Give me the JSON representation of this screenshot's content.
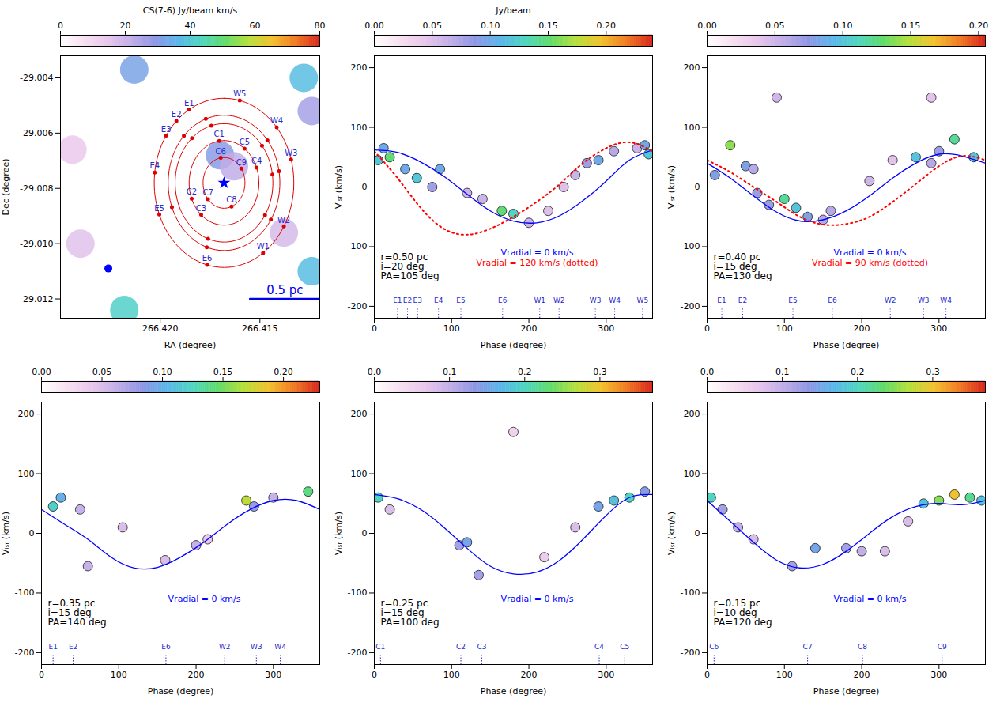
{
  "chart_data": [
    {
      "type": "map",
      "colorbar": {
        "label": "CS(7-6) Jy/beam km/s",
        "range": [
          0,
          80
        ],
        "ticks": [
          0,
          20,
          40,
          60,
          80
        ]
      },
      "xlabel": "RA (degree)",
      "ylabel": "Dec (degree)",
      "xlim": [
        266.425,
        266.412
      ],
      "xticks": [
        {
          "value": 266.42,
          "label": "266.420"
        },
        266.415
      ],
      "ylim": [
        -29.0127,
        -29.0032
      ],
      "yticks": [
        -29.004,
        -29.006,
        -29.008,
        {
          "value": -29.01,
          "label": "-29.010"
        },
        -29.012
      ],
      "emission": {
        "ra": [
          266.4213,
          266.4128,
          266.4124,
          266.4244,
          266.4218,
          266.4124,
          266.417,
          266.4163,
          266.4138,
          266.424
        ],
        "dec": [
          -29.0037,
          -29.004,
          -29.0052,
          -29.0066,
          -29.0124,
          -29.011,
          -29.0068,
          -29.0072,
          -29.0096,
          -29.01
        ],
        "values": [
          32,
          38,
          26,
          14,
          42,
          38,
          30,
          22,
          18,
          16
        ]
      },
      "center": {
        "ra": 266.4168,
        "dec": -29.0078,
        "marker": "star",
        "color": "#0000ff"
      },
      "symbols": [
        {
          "ra": 266.4168,
          "dec": -29.0078,
          "marker": "star",
          "color": "#0000ff"
        },
        {
          "ra": 266.4226,
          "dec": -29.0109,
          "marker": "circle",
          "color": "#0000ff"
        }
      ],
      "scale_bar": {
        "label": "0.5 pc",
        "length_pc": 0.5,
        "ra": [
          266.4155,
          266.412
        ],
        "dec": -29.012
      }
    },
    {
      "type": "pv",
      "colorbar": {
        "label": "Jy/beam",
        "range": [
          0,
          0.24
        ],
        "ticks": [
          {
            "value": 0,
            "label": "0.00"
          },
          0.05,
          {
            "value": 0.1,
            "label": "0.10"
          },
          0.15,
          {
            "value": 0.2,
            "label": "0.20"
          }
        ]
      },
      "xlabel": "Phase (degree)",
      "ylabel": "Vₗₛᵣ (km/s)",
      "xlim": [
        0,
        360
      ],
      "xticks": [
        0,
        100,
        200,
        300
      ],
      "ylim": [
        -220,
        220
      ],
      "yticks": [
        -200,
        -100,
        0,
        100,
        200
      ],
      "annotations": [
        "r=0.50 pc",
        "i=20 deg",
        "PA=105 deg"
      ],
      "r_pc": 0.5,
      "emission": {
        "phase": [
          5,
          12,
          20,
          40,
          55,
          75,
          85,
          120,
          140,
          165,
          180,
          200,
          225,
          245,
          260,
          275,
          290,
          310,
          340,
          350,
          355
        ],
        "velocity": [
          45,
          65,
          50,
          30,
          15,
          0,
          30,
          -10,
          -20,
          -40,
          -45,
          -60,
          -40,
          0,
          20,
          40,
          45,
          60,
          65,
          70,
          55
        ],
        "values": [
          0.12,
          0.1,
          0.15,
          0.1,
          0.12,
          0.08,
          0.1,
          0.06,
          0.06,
          0.15,
          0.13,
          0.06,
          0.05,
          0.05,
          0.06,
          0.08,
          0.1,
          0.07,
          0.06,
          0.1,
          0.12
        ]
      },
      "series": [
        {
          "name": "Vradial = 0 km/s",
          "color": "#0000ff",
          "line_style": "solid",
          "x": [
            0,
            30,
            60,
            90,
            120,
            150,
            180,
            210,
            240,
            270,
            300,
            330,
            360
          ],
          "values": [
            62,
            58,
            42,
            18,
            -12,
            -40,
            -57,
            -60,
            -48,
            -23,
            10,
            45,
            62
          ]
        },
        {
          "name": "Vradial = 120 km/s (dotted)",
          "color": "#ff0000",
          "line_style": "dotted",
          "x": [
            0,
            30,
            60,
            90,
            120,
            150,
            180,
            210,
            240,
            270,
            300,
            330,
            360
          ],
          "values": [
            60,
            15,
            -35,
            -70,
            -80,
            -70,
            -50,
            -25,
            5,
            40,
            65,
            75,
            60
          ]
        }
      ],
      "markers": {
        "labels": [
          "E1",
          "E2",
          "E3",
          "E4",
          "E5",
          "E6",
          "W1",
          "W2",
          "W3",
          "W4",
          "W5"
        ],
        "phase": [
          30,
          43,
          56,
          83,
          112,
          166,
          214,
          239,
          286,
          311,
          347
        ]
      }
    },
    {
      "type": "pv",
      "colorbar": {
        "range": [
          0,
          0.205
        ],
        "ticks": [
          {
            "value": 0,
            "label": "0.00"
          },
          0.05,
          {
            "value": 0.1,
            "label": "0.10"
          },
          0.15,
          {
            "value": 0.2,
            "label": "0.20"
          }
        ]
      },
      "xlabel": "Phase (degree)",
      "ylabel": "Vₗₛᵣ (km/s)",
      "xlim": [
        0,
        360
      ],
      "xticks": [
        0,
        100,
        200,
        300
      ],
      "ylim": [
        -220,
        220
      ],
      "yticks": [
        -200,
        -100,
        0,
        100,
        200
      ],
      "annotations": [
        "r=0.40 pc",
        "i=15 deg",
        "PA=130 deg"
      ],
      "r_pc": 0.4,
      "emission": {
        "phase": [
          10,
          30,
          50,
          60,
          65,
          80,
          100,
          115,
          130,
          150,
          160,
          210,
          240,
          270,
          290,
          300,
          320,
          345,
          90,
          290
        ],
        "velocity": [
          20,
          70,
          35,
          30,
          -10,
          -30,
          -20,
          -35,
          -50,
          -55,
          -40,
          10,
          45,
          50,
          40,
          60,
          80,
          50,
          150,
          150
        ],
        "values": [
          0.08,
          0.14,
          0.08,
          0.06,
          0.07,
          0.07,
          0.12,
          0.1,
          0.08,
          0.06,
          0.06,
          0.05,
          0.04,
          0.1,
          0.06,
          0.07,
          0.12,
          0.1,
          0.05,
          0.04
        ]
      },
      "series": [
        {
          "name": "Vradial = 0 km/s",
          "color": "#0000ff",
          "line_style": "solid",
          "x": [
            0,
            30,
            60,
            90,
            120,
            150,
            180,
            210,
            240,
            270,
            300,
            330,
            360
          ],
          "values": [
            40,
            15,
            -15,
            -42,
            -57,
            -55,
            -40,
            -15,
            15,
            40,
            55,
            52,
            40
          ]
        },
        {
          "name": "Vradial = 90 km/s (dotted)",
          "color": "#ff0000",
          "line_style": "dotted",
          "x": [
            0,
            30,
            60,
            90,
            120,
            150,
            180,
            210,
            240,
            270,
            300,
            330,
            360
          ],
          "values": [
            45,
            25,
            0,
            -25,
            -50,
            -63,
            -62,
            -50,
            -25,
            5,
            35,
            52,
            45
          ]
        }
      ],
      "markers": {
        "labels": [
          "E1",
          "E2",
          "E5",
          "E6",
          "W2",
          "W3",
          "W4"
        ],
        "phase": [
          19,
          46,
          111,
          162,
          237,
          280,
          309
        ]
      }
    },
    {
      "type": "pv",
      "colorbar": {
        "range": [
          0,
          0.23
        ],
        "ticks": [
          {
            "value": 0,
            "label": "0.00"
          },
          0.05,
          {
            "value": 0.1,
            "label": "0.10"
          },
          0.15,
          {
            "value": 0.2,
            "label": "0.20"
          }
        ]
      },
      "xlabel": "Phase (degree)",
      "ylabel": "Vₗₛᵣ (km/s)",
      "xlim": [
        0,
        360
      ],
      "xticks": [
        0,
        100,
        200,
        300
      ],
      "ylim": [
        -220,
        220
      ],
      "yticks": [
        -200,
        -100,
        0,
        100,
        200
      ],
      "annotations": [
        "r=0.35 pc",
        "i=15 deg",
        "PA=140 deg"
      ],
      "r_pc": 0.35,
      "emission": {
        "phase": [
          15,
          25,
          50,
          60,
          105,
          160,
          200,
          215,
          265,
          275,
          300,
          345
        ],
        "velocity": [
          45,
          60,
          40,
          -55,
          10,
          -45,
          -20,
          -10,
          55,
          45,
          60,
          70
        ],
        "values": [
          0.12,
          0.1,
          0.06,
          0.06,
          0.05,
          0.05,
          0.06,
          0.04,
          0.17,
          0.08,
          0.06,
          0.14
        ]
      },
      "series": [
        {
          "name": "Vradial = 0 km/s",
          "color": "#0000ff",
          "line_style": "solid",
          "x": [
            0,
            30,
            60,
            90,
            120,
            150,
            180,
            210,
            240,
            270,
            300,
            330,
            360
          ],
          "values": [
            40,
            15,
            -10,
            -40,
            -58,
            -57,
            -40,
            -15,
            15,
            40,
            55,
            55,
            40
          ]
        }
      ],
      "markers": {
        "labels": [
          "E1",
          "E2",
          "E6",
          "W2",
          "W3",
          "W4"
        ],
        "phase": [
          15,
          41,
          161,
          237,
          278,
          309
        ]
      }
    },
    {
      "type": "pv",
      "colorbar": {
        "range": [
          0,
          0.37
        ],
        "ticks": [
          {
            "value": 0,
            "label": "0.0"
          },
          0.1,
          0.2,
          0.3
        ]
      },
      "xlabel": "Phase (degree)",
      "ylabel": "Vₗₛᵣ (km/s)",
      "xlim": [
        0,
        360
      ],
      "xticks": [
        0,
        100,
        200,
        300
      ],
      "ylim": [
        -220,
        220
      ],
      "yticks": [
        -200,
        -100,
        0,
        100,
        200
      ],
      "annotations": [
        "r=0.25 pc",
        "i=15 deg",
        "PA=100 deg"
      ],
      "r_pc": 0.25,
      "emission": {
        "phase": [
          5,
          20,
          110,
          120,
          135,
          220,
          260,
          290,
          310,
          330,
          350,
          180
        ],
        "velocity": [
          60,
          40,
          -20,
          -15,
          -70,
          -40,
          10,
          45,
          55,
          60,
          70,
          170
        ],
        "values": [
          0.2,
          0.08,
          0.12,
          0.15,
          0.12,
          0.06,
          0.08,
          0.15,
          0.18,
          0.2,
          0.14,
          0.05
        ]
      },
      "series": [
        {
          "name": "Vradial = 0 km/s",
          "color": "#0000ff",
          "line_style": "solid",
          "x": [
            0,
            30,
            60,
            90,
            120,
            150,
            180,
            210,
            240,
            270,
            300,
            330,
            360
          ],
          "values": [
            65,
            58,
            40,
            10,
            -25,
            -55,
            -68,
            -65,
            -45,
            -10,
            30,
            60,
            65
          ]
        }
      ],
      "markers": {
        "labels": [
          "C1",
          "C2",
          "C3",
          "C4",
          "C5"
        ],
        "phase": [
          8,
          112,
          139,
          291,
          324
        ]
      }
    },
    {
      "type": "pv",
      "colorbar": {
        "range": [
          0,
          0.37
        ],
        "ticks": [
          {
            "value": 0,
            "label": "0.0"
          },
          0.1,
          0.2,
          0.3
        ]
      },
      "xlabel": "Phase (degree)",
      "ylabel": "Vₗₛᵣ (km/s)",
      "xlim": [
        0,
        360
      ],
      "xticks": [
        0,
        100,
        200,
        300
      ],
      "ylim": [
        -220,
        220
      ],
      "yticks": [
        -200,
        -100,
        0,
        100,
        200
      ],
      "annotations": [
        "r=0.15 pc",
        "i=10 deg",
        "PA=120 deg"
      ],
      "r_pc": 0.15,
      "emission": {
        "phase": [
          5,
          20,
          40,
          60,
          110,
          140,
          180,
          200,
          230,
          260,
          280,
          300,
          320,
          340,
          355
        ],
        "velocity": [
          60,
          40,
          10,
          -10,
          -55,
          -25,
          -25,
          -30,
          -30,
          20,
          50,
          55,
          65,
          60,
          55
        ],
        "values": [
          0.2,
          0.12,
          0.1,
          0.08,
          0.12,
          0.15,
          0.12,
          0.1,
          0.08,
          0.08,
          0.18,
          0.25,
          0.3,
          0.22,
          0.18
        ]
      },
      "series": [
        {
          "name": "Vradial = 0 km/s",
          "color": "#0000ff",
          "line_style": "solid",
          "x": [
            0,
            30,
            60,
            90,
            120,
            150,
            180,
            210,
            240,
            270,
            300,
            330,
            360
          ],
          "values": [
            55,
            20,
            -15,
            -45,
            -58,
            -52,
            -30,
            0,
            28,
            45,
            50,
            48,
            55
          ]
        }
      ],
      "markers": {
        "labels": [
          "C6",
          "C7",
          "C8",
          "C9"
        ],
        "phase": [
          9,
          130,
          201,
          304
        ]
      }
    }
  ]
}
